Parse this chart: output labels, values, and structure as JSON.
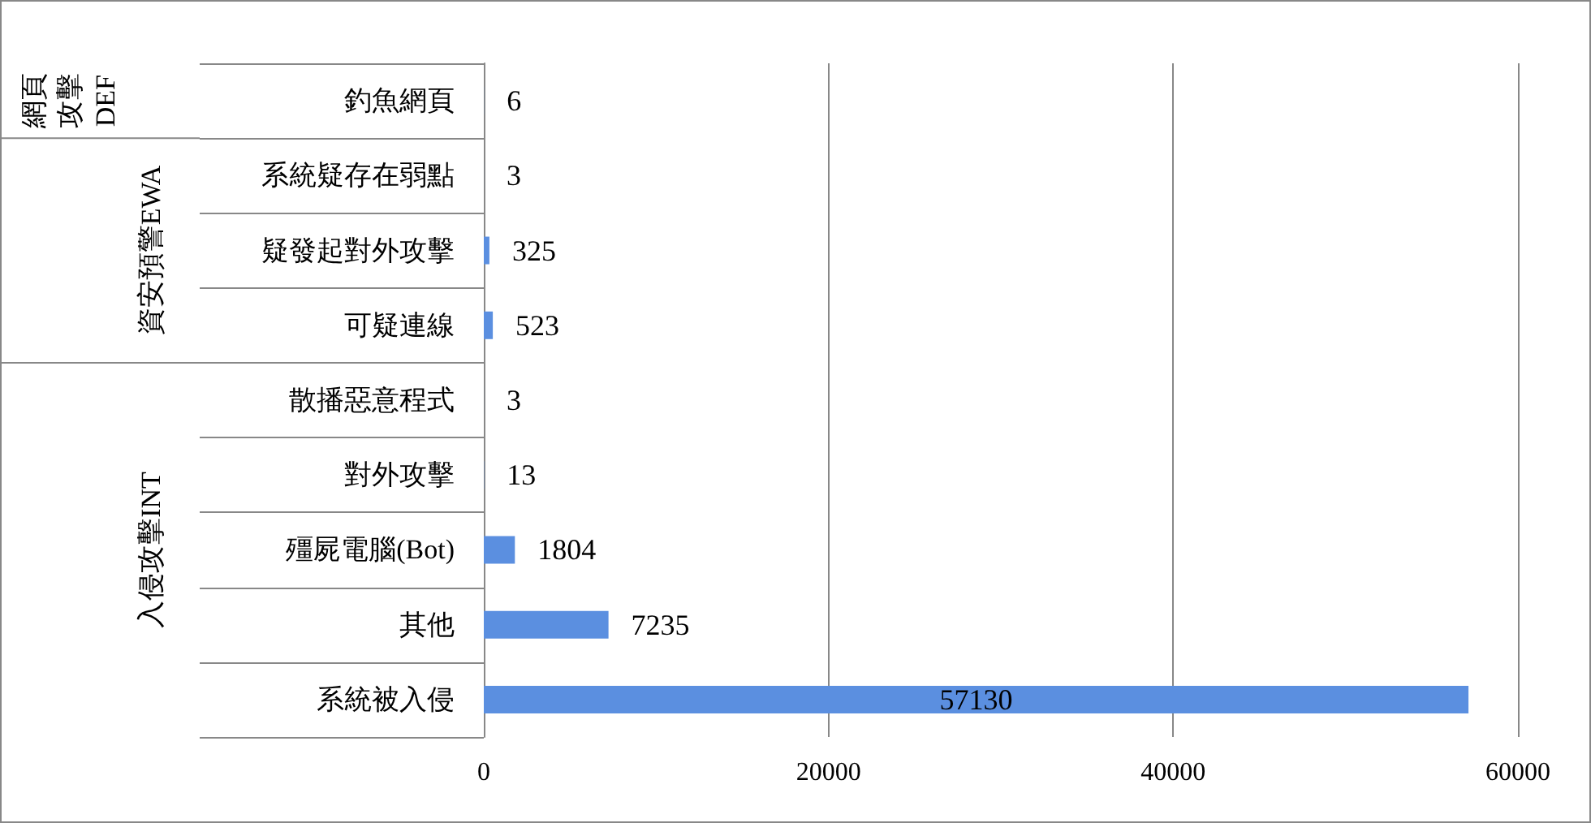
{
  "chart_data": {
    "type": "bar",
    "orientation": "horizontal",
    "categories": [
      "釣魚網頁",
      "系統疑存在弱點",
      "疑發起對外攻擊",
      "可疑連線",
      "散播惡意程式",
      "對外攻擊",
      "殭屍電腦(Bot)",
      "其他",
      "系統被入侵"
    ],
    "values": [
      6,
      3,
      325,
      523,
      3,
      13,
      1804,
      7235,
      57130
    ],
    "color": "#5b8fe0",
    "xlim": [
      0,
      60000
    ],
    "xticks": [
      0,
      20000,
      40000,
      60000
    ],
    "grid": "x",
    "data_labels": true,
    "annotations": [
      "網頁攻擊DEF",
      "資安預警EWA",
      "入侵攻擊INT"
    ]
  }
}
